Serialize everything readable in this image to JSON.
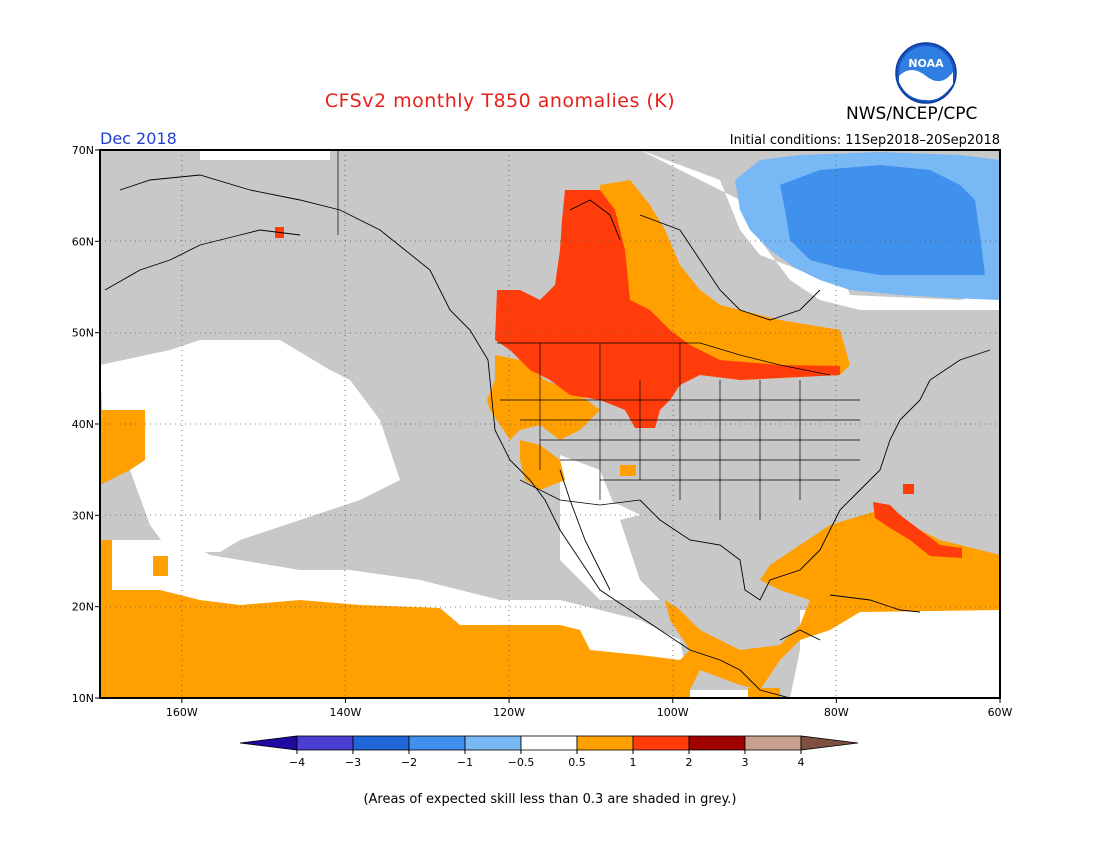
{
  "header": {
    "title": "CFSv2 monthly T850 anomalies (K)",
    "organization": "NWS/NCEP/CPC",
    "logo_text": "NOAA",
    "period": "Dec 2018",
    "initial_conditions": "Initial conditions: 11Sep2018–20Sep2018"
  },
  "map": {
    "lat_labels": [
      "70N",
      "60N",
      "50N",
      "40N",
      "30N",
      "20N",
      "10N"
    ],
    "lon_labels": [
      "160W",
      "140W",
      "120W",
      "100W",
      "80W",
      "60W"
    ],
    "extent": {
      "lon_min": -170,
      "lon_max": -60,
      "lat_min": 10,
      "lat_max": 70
    }
  },
  "legend": {
    "tick_labels": [
      "−4",
      "−3",
      "−2",
      "−1",
      "−0.5",
      "0.5",
      "1",
      "2",
      "3",
      "4"
    ],
    "colors": [
      "#1e0aa0",
      "#4a3fd1",
      "#2066d8",
      "#4090ee",
      "#78b8f4",
      "#ffffff",
      "#ff9f00",
      "#ff3c0a",
      "#a00000",
      "#c8a090",
      "#7d5040"
    ],
    "grey_color": "#c8c8c8"
  },
  "footnote": "(Areas of expected skill less than 0.3 are shaded in grey.)"
}
